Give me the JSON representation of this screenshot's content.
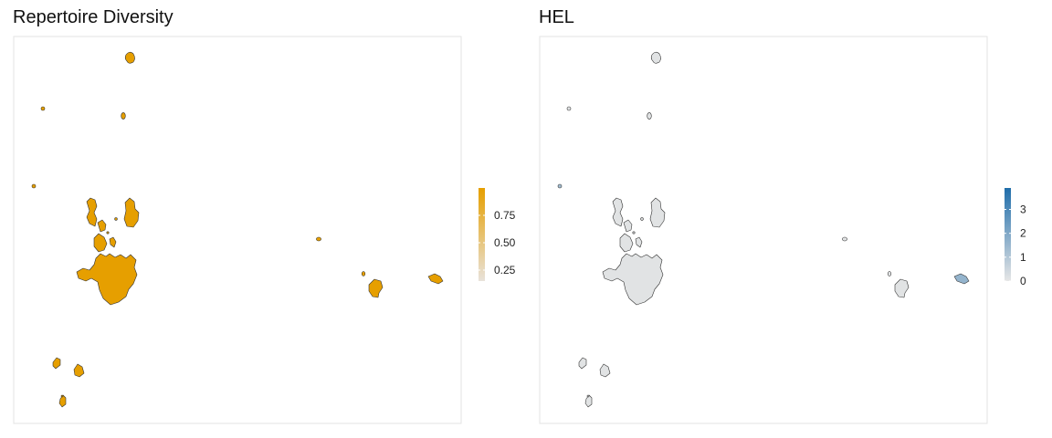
{
  "chart_data": [
    {
      "type": "scatter",
      "title": "Repertoire Diversity",
      "xlabel": "",
      "ylabel": "",
      "grid": false,
      "legend": "right",
      "point_color": "#E69F00",
      "colorbar": {
        "low_color": "#E8E2DA",
        "high_color": "#E69F00",
        "min": 0.15,
        "max": 1.0,
        "ticks": [
          0.25,
          0.5,
          0.75
        ],
        "tick_labels": [
          "0.25",
          "0.50",
          "0.75"
        ]
      },
      "clusters": [
        {
          "id": "top-island",
          "value": 0.95
        },
        {
          "id": "upper-left-dot",
          "value": 0.95
        },
        {
          "id": "upper-small",
          "value": 0.95
        },
        {
          "id": "left-dot",
          "value": 0.95
        },
        {
          "id": "main-cluster",
          "value": 0.95
        },
        {
          "id": "mid-right-dot",
          "value": 0.95
        },
        {
          "id": "right-cluster-a",
          "value": 0.95
        },
        {
          "id": "right-cluster-b",
          "value": 0.95
        },
        {
          "id": "bottom-left-a",
          "value": 0.95
        },
        {
          "id": "bottom-left-b",
          "value": 0.95
        },
        {
          "id": "bottom-left-c",
          "value": 0.95
        }
      ]
    },
    {
      "type": "scatter",
      "title": "HEL",
      "xlabel": "",
      "ylabel": "",
      "grid": false,
      "legend": "right",
      "colorbar": {
        "low_color": "#E6E6E6",
        "high_color": "#1F6DAA",
        "min": 0,
        "max": 3.9,
        "ticks": [
          0,
          1,
          2,
          3
        ],
        "tick_labels": [
          "0",
          "1",
          "2",
          "3"
        ]
      },
      "clusters": [
        {
          "id": "top-island",
          "value": 0.1
        },
        {
          "id": "upper-left-dot",
          "value": 0.1
        },
        {
          "id": "upper-small",
          "value": 0.1
        },
        {
          "id": "left-dot",
          "value": 1.3
        },
        {
          "id": "main-cluster",
          "value": 0.1
        },
        {
          "id": "mid-right-dot",
          "value": 0.1
        },
        {
          "id": "right-cluster-a",
          "value": 0.1
        },
        {
          "id": "right-cluster-b",
          "value": 1.6
        },
        {
          "id": "bottom-left-a",
          "value": 0.1
        },
        {
          "id": "bottom-left-b",
          "value": 0.1
        },
        {
          "id": "bottom-left-c",
          "value": 0.1
        }
      ]
    }
  ]
}
